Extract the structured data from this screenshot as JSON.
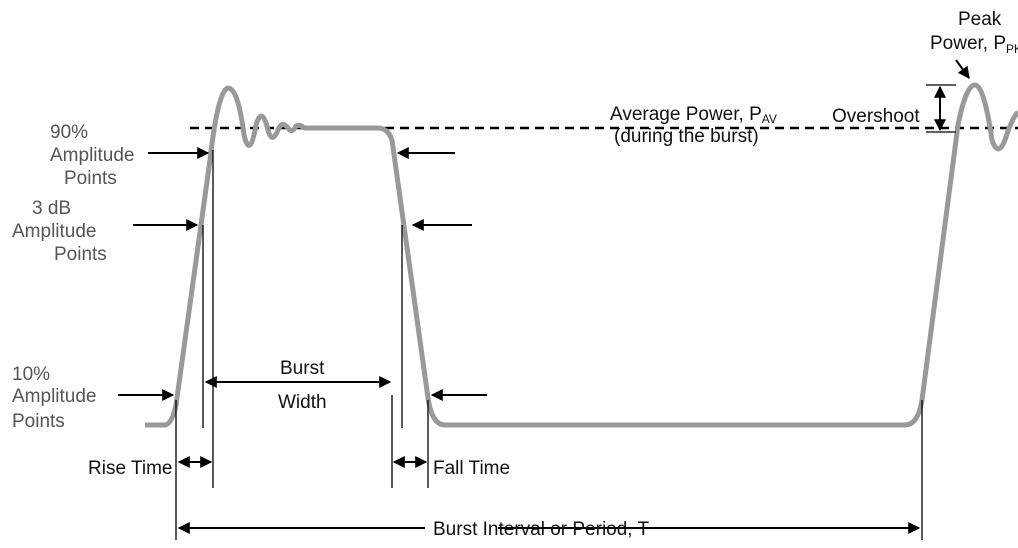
{
  "labels": {
    "peak_line1": "Peak",
    "peak_line2": "Power, P",
    "peak_sub": "PK",
    "average_line1": "Average Power, P",
    "average_sub": "AV",
    "average_line2": "(during the burst)",
    "overshoot": "Overshoot",
    "ninety_line1": "90%",
    "ninety_line2": "Amplitude",
    "ninety_line3": "Points",
    "threedb_line1": "3 dB",
    "threedb_line2": "Amplitude",
    "threedb_line3": "Points",
    "ten_line1": "10%",
    "ten_line2": "Amplitude",
    "ten_line3": "Points",
    "burst_width_line1": "Burst",
    "burst_width_line2": "Width",
    "rise_time": "Rise Time",
    "fall_time": "Fall Time",
    "burst_interval": "Burst Interval or Period, T"
  }
}
